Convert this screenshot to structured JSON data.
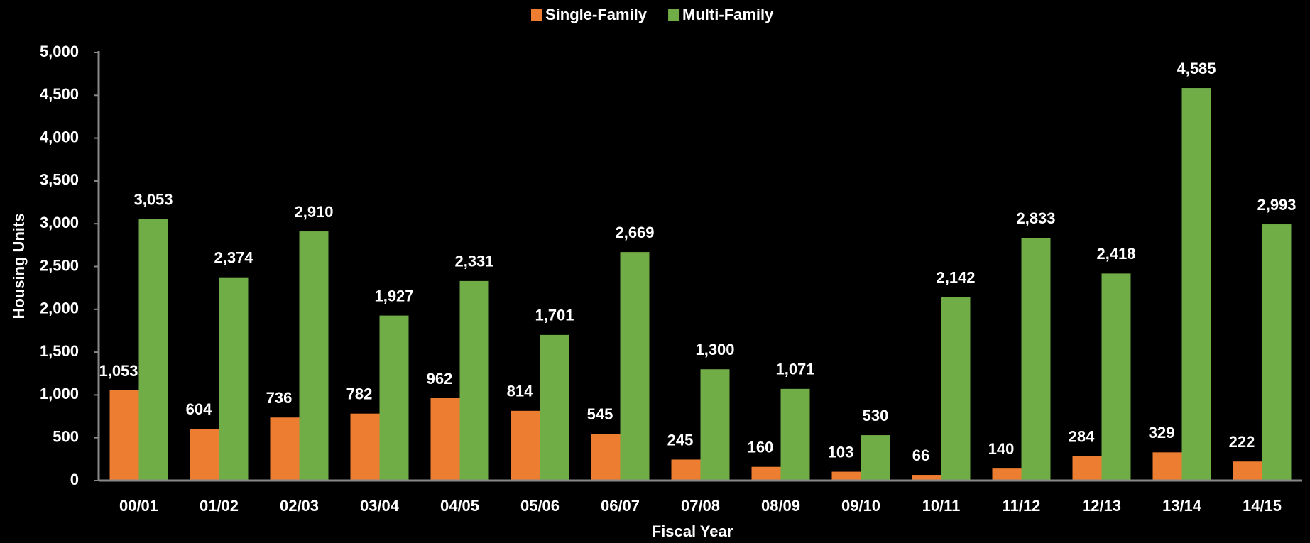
{
  "chart_data": {
    "type": "bar",
    "x_label": "Fiscal Year",
    "y_label": "Housing Units",
    "categories": [
      "00/01",
      "01/02",
      "02/03",
      "03/04",
      "04/05",
      "05/06",
      "06/07",
      "07/08",
      "08/09",
      "09/10",
      "10/11",
      "11/12",
      "12/13",
      "13/14",
      "14/15"
    ],
    "series": [
      {
        "name": "Single-Family",
        "color": "#ed7d31",
        "values": [
          1053,
          604,
          736,
          782,
          962,
          814,
          545,
          245,
          160,
          103,
          66,
          140,
          284,
          329,
          222
        ],
        "value_labels": [
          "1,053",
          "604",
          "736",
          "782",
          "962",
          "814",
          "545",
          "245",
          "160",
          "103",
          "66",
          "140",
          "284",
          "329",
          "222"
        ]
      },
      {
        "name": "Multi-Family",
        "color": "#70ad47",
        "values": [
          3053,
          2374,
          2910,
          1927,
          2331,
          1701,
          2669,
          1300,
          1071,
          530,
          2142,
          2833,
          2418,
          4585,
          2993
        ],
        "value_labels": [
          "3,053",
          "2,374",
          "2,910",
          "1,927",
          "2,331",
          "1,701",
          "2,669",
          "1,300",
          "1,071",
          "530",
          "2,142",
          "2,833",
          "2,418",
          "4,585",
          "2,993"
        ]
      }
    ],
    "ylim": [
      0,
      5000
    ],
    "yticks": [
      0,
      500,
      {
        "value": 1000,
        "label": "1,000"
      },
      {
        "value": 1500,
        "label": "1,500"
      },
      {
        "value": 2000,
        "label": "2,000"
      },
      {
        "value": 2500,
        "label": "2,500"
      },
      {
        "value": 3000,
        "label": "3,000"
      },
      {
        "value": 3500,
        "label": "3,500"
      },
      {
        "value": 4000,
        "label": "4,000"
      },
      {
        "value": 4500,
        "label": "4,500"
      },
      {
        "value": 5000,
        "label": "5,000"
      }
    ],
    "legend": "top"
  }
}
